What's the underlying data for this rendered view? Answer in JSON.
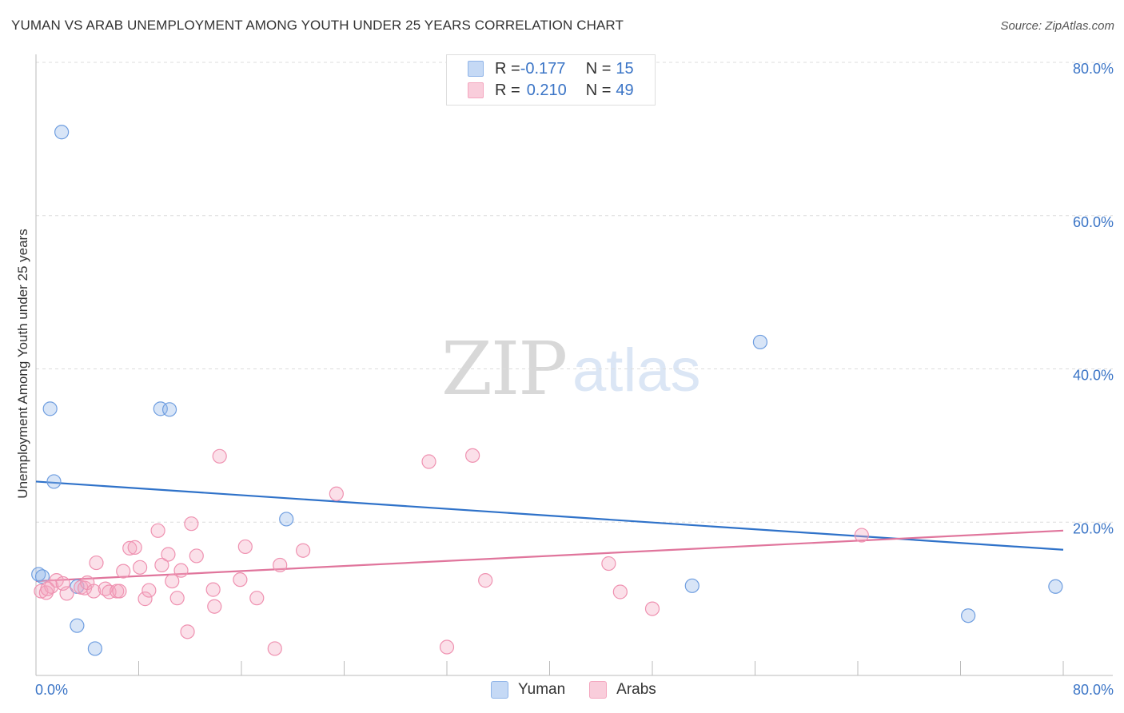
{
  "header": {
    "title": "YUMAN VS ARAB UNEMPLOYMENT AMONG YOUTH UNDER 25 YEARS CORRELATION CHART",
    "source": "Source: ZipAtlas.com"
  },
  "watermark": {
    "zip": "ZIP",
    "atlas": "atlas"
  },
  "legend": {
    "rows": [
      {
        "r_label": "R = ",
        "r_value": "-0.177",
        "n_label": "N = ",
        "n_value": "15",
        "color": "#8fb4e8"
      },
      {
        "r_label": "R = ",
        "r_value": "0.210",
        "n_label": "N = ",
        "n_value": "49",
        "color": "#f4a6bf"
      }
    ]
  },
  "chart_data": {
    "type": "scatter",
    "title": "YUMAN VS ARAB UNEMPLOYMENT AMONG YOUTH UNDER 25 YEARS CORRELATION CHART",
    "xlabel": "",
    "ylabel": "Unemployment Among Youth under 25 years",
    "xlim": [
      0,
      80
    ],
    "ylim": [
      0,
      80
    ],
    "x_tick_labels": [
      "0.0%",
      "80.0%"
    ],
    "y_tick_labels": [
      {
        "value": 20,
        "label": "20.0%"
      },
      {
        "value": 40,
        "label": "40.0%"
      },
      {
        "value": 60,
        "label": "60.0%"
      },
      {
        "value": 80,
        "label": "80.0%"
      }
    ],
    "grid": true,
    "legend_position": "top-center",
    "series": [
      {
        "name": "Yuman",
        "color": "#8fb4e8",
        "trend_color": "#2f72c9",
        "trend": {
          "x": [
            0,
            80
          ],
          "y": [
            25.3,
            16.4
          ]
        },
        "points": [
          {
            "x": 0.2,
            "y": 13.2
          },
          {
            "x": 0.5,
            "y": 12.9
          },
          {
            "x": 1.1,
            "y": 34.8
          },
          {
            "x": 1.4,
            "y": 25.3
          },
          {
            "x": 2.0,
            "y": 70.9
          },
          {
            "x": 3.2,
            "y": 6.5
          },
          {
            "x": 3.2,
            "y": 11.6
          },
          {
            "x": 4.6,
            "y": 3.5
          },
          {
            "x": 9.7,
            "y": 34.8
          },
          {
            "x": 10.4,
            "y": 34.7
          },
          {
            "x": 19.5,
            "y": 20.4
          },
          {
            "x": 51.1,
            "y": 11.7
          },
          {
            "x": 56.4,
            "y": 43.5
          },
          {
            "x": 72.6,
            "y": 7.8
          },
          {
            "x": 79.4,
            "y": 11.6
          }
        ]
      },
      {
        "name": "Arabs",
        "color": "#f4a6bf",
        "trend_color": "#e0759c",
        "trend": {
          "x": [
            0,
            80
          ],
          "y": [
            12.3,
            18.9
          ]
        },
        "points": [
          {
            "x": 0.4,
            "y": 11.0
          },
          {
            "x": 0.8,
            "y": 10.8
          },
          {
            "x": 1.2,
            "y": 11.6
          },
          {
            "x": 1.6,
            "y": 12.4
          },
          {
            "x": 2.1,
            "y": 12.0
          },
          {
            "x": 2.4,
            "y": 10.7
          },
          {
            "x": 3.5,
            "y": 11.5
          },
          {
            "x": 3.8,
            "y": 11.4
          },
          {
            "x": 4.0,
            "y": 12.1
          },
          {
            "x": 4.5,
            "y": 11.0
          },
          {
            "x": 4.7,
            "y": 14.7
          },
          {
            "x": 5.4,
            "y": 11.3
          },
          {
            "x": 5.7,
            "y": 10.9
          },
          {
            "x": 6.3,
            "y": 11.0
          },
          {
            "x": 6.5,
            "y": 11.0
          },
          {
            "x": 6.8,
            "y": 13.6
          },
          {
            "x": 7.3,
            "y": 16.6
          },
          {
            "x": 7.7,
            "y": 16.7
          },
          {
            "x": 8.1,
            "y": 14.1
          },
          {
            "x": 8.5,
            "y": 10.0
          },
          {
            "x": 8.8,
            "y": 11.1
          },
          {
            "x": 9.5,
            "y": 18.9
          },
          {
            "x": 9.8,
            "y": 14.4
          },
          {
            "x": 10.3,
            "y": 15.8
          },
          {
            "x": 10.6,
            "y": 12.3
          },
          {
            "x": 11.0,
            "y": 10.1
          },
          {
            "x": 11.3,
            "y": 13.7
          },
          {
            "x": 11.8,
            "y": 5.7
          },
          {
            "x": 12.1,
            "y": 19.8
          },
          {
            "x": 12.5,
            "y": 15.6
          },
          {
            "x": 13.8,
            "y": 11.2
          },
          {
            "x": 13.9,
            "y": 9.0
          },
          {
            "x": 14.3,
            "y": 28.6
          },
          {
            "x": 15.9,
            "y": 12.5
          },
          {
            "x": 16.3,
            "y": 16.8
          },
          {
            "x": 17.2,
            "y": 10.1
          },
          {
            "x": 18.6,
            "y": 3.5
          },
          {
            "x": 19.0,
            "y": 14.4
          },
          {
            "x": 20.8,
            "y": 16.3
          },
          {
            "x": 23.4,
            "y": 23.7
          },
          {
            "x": 30.6,
            "y": 27.9
          },
          {
            "x": 32.0,
            "y": 3.7
          },
          {
            "x": 34.0,
            "y": 28.7
          },
          {
            "x": 35.0,
            "y": 12.4
          },
          {
            "x": 44.6,
            "y": 14.6
          },
          {
            "x": 45.5,
            "y": 10.9
          },
          {
            "x": 48.0,
            "y": 8.7
          },
          {
            "x": 64.3,
            "y": 18.3
          },
          {
            "x": 0.9,
            "y": 11.3
          }
        ]
      }
    ]
  }
}
